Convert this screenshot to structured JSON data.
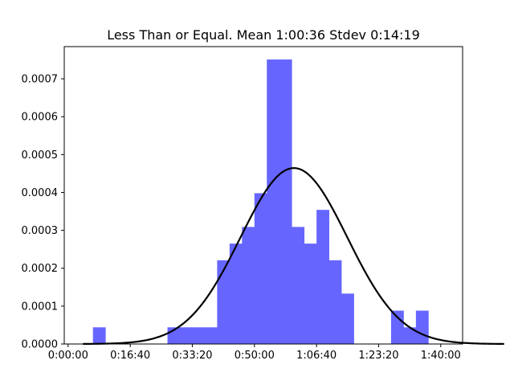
{
  "chart_data": {
    "type": "bar",
    "title": "Less Than or Equal. Mean 1:00:36 Stdev 0:14:19",
    "xlabel": "",
    "ylabel": "",
    "x_unit": "h:mm:ss",
    "xlim": [
      "-0:01:02",
      "1:45:52"
    ],
    "ylim": [
      0,
      0.000785
    ],
    "grid": false,
    "legend": "none",
    "x_ticks": [
      "0:00:00",
      "0:16:40",
      "0:33:20",
      "0:50:00",
      "1:06:40",
      "1:23:20",
      "1:40:00"
    ],
    "y_ticks": [
      "0.0000",
      "0.0001",
      "0.0002",
      "0.0003",
      "0.0004",
      "0.0005",
      "0.0006",
      "0.0007"
    ],
    "histogram": {
      "name": "",
      "color": "#6666ff",
      "bin_width": "0:03:20",
      "bins": [
        {
          "start": "0:06:40",
          "end": "0:10:00",
          "density": 4.4e-05
        },
        {
          "start": "0:26:40",
          "end": "0:30:00",
          "density": 4.4e-05
        },
        {
          "start": "0:30:00",
          "end": "0:33:20",
          "density": 4.4e-05
        },
        {
          "start": "0:33:20",
          "end": "0:36:40",
          "density": 4.4e-05
        },
        {
          "start": "0:36:40",
          "end": "0:40:00",
          "density": 4.4e-05
        },
        {
          "start": "0:40:00",
          "end": "0:43:20",
          "density": 0.000221
        },
        {
          "start": "0:43:20",
          "end": "0:46:40",
          "density": 0.000265
        },
        {
          "start": "0:46:40",
          "end": "0:50:00",
          "density": 0.000309
        },
        {
          "start": "0:50:00",
          "end": "0:53:20",
          "density": 0.000398
        },
        {
          "start": "0:53:20",
          "end": "0:56:40",
          "density": 0.000751
        },
        {
          "start": "0:56:40",
          "end": "1:00:00",
          "density": 0.000751
        },
        {
          "start": "1:00:00",
          "end": "1:03:20",
          "density": 0.000309
        },
        {
          "start": "1:03:20",
          "end": "1:06:40",
          "density": 0.000265
        },
        {
          "start": "1:06:40",
          "end": "1:10:00",
          "density": 0.000354
        },
        {
          "start": "1:10:00",
          "end": "1:13:20",
          "density": 0.000221
        },
        {
          "start": "1:13:20",
          "end": "1:16:40",
          "density": 0.000133
        },
        {
          "start": "1:26:40",
          "end": "1:30:00",
          "density": 8.8e-05
        },
        {
          "start": "1:30:00",
          "end": "1:33:20",
          "density": 4.4e-05
        },
        {
          "start": "1:33:20",
          "end": "1:36:40",
          "density": 8.8e-05
        }
      ]
    },
    "fit_curve": {
      "name": "",
      "type": "normal_pdf",
      "color": "#000000",
      "mean": "1:00:36",
      "stdev": "0:14:19",
      "x_range": [
        "0:04:00",
        "1:57:00"
      ]
    }
  }
}
